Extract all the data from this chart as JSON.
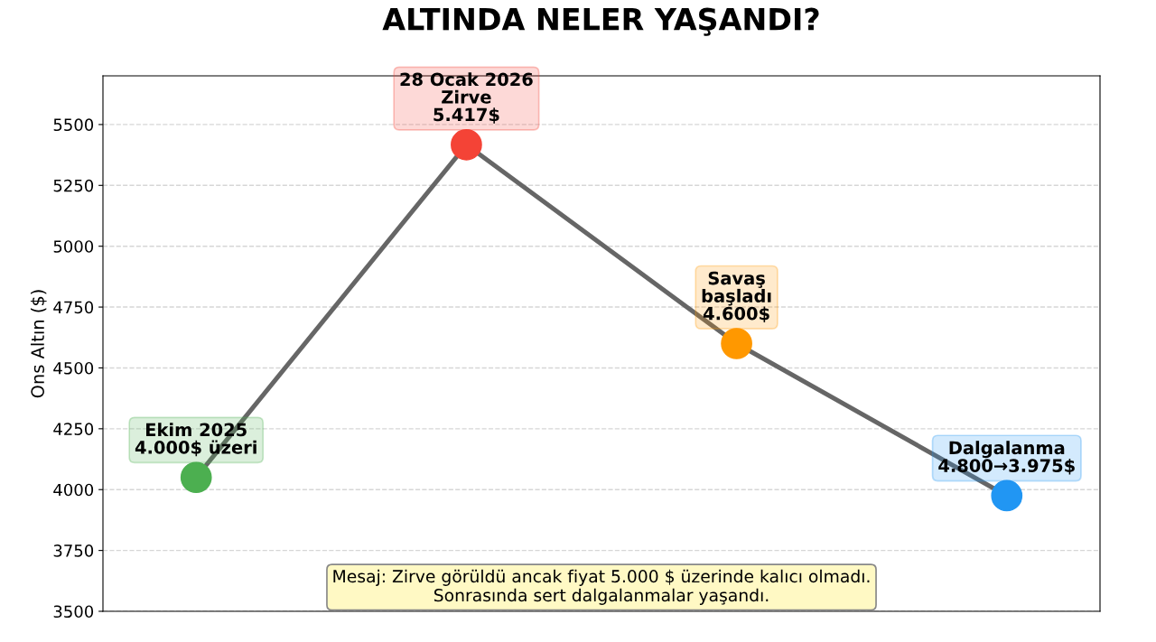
{
  "chart_data": {
    "type": "line",
    "title": "ALTINDA NELER YAŞANDI?",
    "ylabel": "Ons Altın ($)",
    "categories": [
      null,
      null,
      null,
      null
    ],
    "series": [
      {
        "color": "#666666",
        "colors": [
          "#4caf50",
          "#f44336",
          "#ff9800",
          "#2196f3"
        ],
        "values": [
          4050,
          5417,
          4600,
          3975
        ],
        "value_labels": [
          "Ekim 2025\n4.000$ üzeri",
          "28 Ocak 2026\nZirve\n5.417$",
          "Savaş\nbaşladı\n4.600$",
          "Dalgalanma\n4.800→3.975$"
        ]
      }
    ],
    "marker": "circle",
    "line_style": "solid",
    "ylim": [
      3500,
      5700
    ],
    "yticks": [
      3500,
      3750,
      4000,
      4250,
      4500,
      4750,
      5000,
      5250,
      5500
    ],
    "grid": "y",
    "tick_labels": "y",
    "annotations": [
      "Mesaj: Zirve görüldü ancak fiyat 5.000 $ üzerinde kalıcı olmadı.\nSonrasında sert dalgalanmalar yaşandı."
    ]
  }
}
